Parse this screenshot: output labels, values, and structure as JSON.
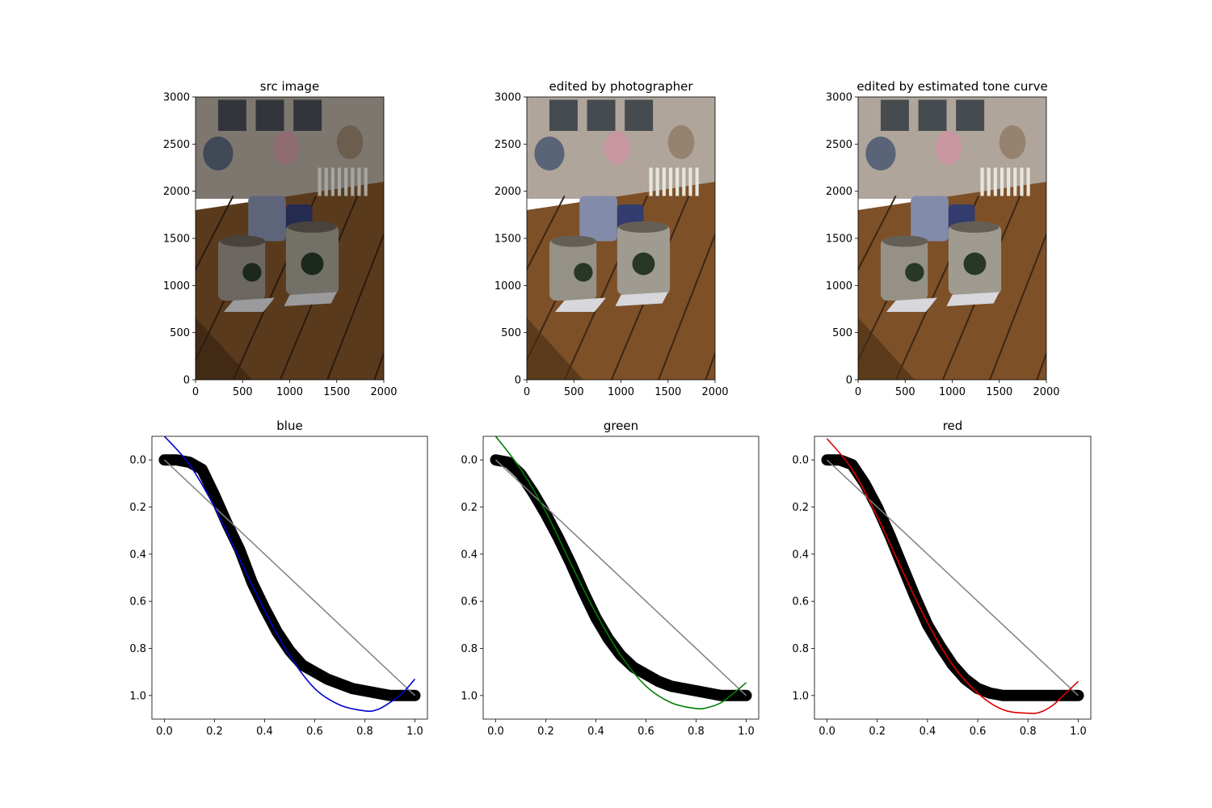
{
  "chart_data": [
    {
      "type": "image",
      "title": "src image",
      "xlim": [
        0,
        2000
      ],
      "ylim": [
        3000,
        0
      ],
      "xticks": [
        0,
        500,
        1000,
        1500,
        2000
      ],
      "yticks": [
        0,
        500,
        1000,
        1500,
        2000,
        2500,
        3000
      ],
      "brightness": 0.72
    },
    {
      "type": "image",
      "title": "edited by photographer",
      "xlim": [
        0,
        2000
      ],
      "ylim": [
        3000,
        0
      ],
      "xticks": [
        0,
        500,
        1000,
        1500,
        2000
      ],
      "yticks": [
        0,
        500,
        1000,
        1500,
        2000,
        2500,
        3000
      ],
      "brightness": 1.0
    },
    {
      "type": "image",
      "title": "edited by estimated tone curve",
      "xlim": [
        0,
        2000
      ],
      "ylim": [
        3000,
        0
      ],
      "xticks": [
        0,
        500,
        1000,
        1500,
        2000
      ],
      "yticks": [
        0,
        500,
        1000,
        1500,
        2000,
        2500,
        3000
      ],
      "brightness": 1.0
    },
    {
      "type": "scatter",
      "title": "blue",
      "xlim": [
        -0.05,
        1.05
      ],
      "ylim": [
        -0.1,
        1.1
      ],
      "xticks": [
        0.0,
        0.2,
        0.4,
        0.6,
        0.8,
        1.0
      ],
      "yticks": [
        0.0,
        0.2,
        0.4,
        0.6,
        0.8,
        1.0
      ],
      "scatter_color": "#000000",
      "fit_color": "#0000cc",
      "identity_color": "#808080",
      "points": [
        [
          0.0,
          0.0
        ],
        [
          0.05,
          0.0
        ],
        [
          0.1,
          0.01
        ],
        [
          0.15,
          0.04
        ],
        [
          0.2,
          0.15
        ],
        [
          0.25,
          0.27
        ],
        [
          0.3,
          0.38
        ],
        [
          0.35,
          0.52
        ],
        [
          0.4,
          0.63
        ],
        [
          0.45,
          0.73
        ],
        [
          0.5,
          0.81
        ],
        [
          0.55,
          0.87
        ],
        [
          0.6,
          0.9
        ],
        [
          0.65,
          0.93
        ],
        [
          0.7,
          0.95
        ],
        [
          0.75,
          0.97
        ],
        [
          0.8,
          0.98
        ],
        [
          0.85,
          0.99
        ],
        [
          0.9,
          1.0
        ],
        [
          0.95,
          1.0
        ],
        [
          1.0,
          1.0
        ]
      ],
      "fit": [
        [
          0.0,
          -0.1
        ],
        [
          0.1,
          0.02
        ],
        [
          0.2,
          0.2
        ],
        [
          0.3,
          0.42
        ],
        [
          0.4,
          0.64
        ],
        [
          0.5,
          0.83
        ],
        [
          0.6,
          0.97
        ],
        [
          0.7,
          1.04
        ],
        [
          0.8,
          1.065
        ],
        [
          0.85,
          1.06
        ],
        [
          0.9,
          1.03
        ],
        [
          0.95,
          0.99
        ],
        [
          1.0,
          0.93
        ]
      ]
    },
    {
      "type": "scatter",
      "title": "green",
      "xlim": [
        -0.05,
        1.05
      ],
      "ylim": [
        -0.1,
        1.1
      ],
      "xticks": [
        0.0,
        0.2,
        0.4,
        0.6,
        0.8,
        1.0
      ],
      "yticks": [
        0.0,
        0.2,
        0.4,
        0.6,
        0.8,
        1.0
      ],
      "scatter_color": "#000000",
      "fit_color": "#007f00",
      "identity_color": "#808080",
      "points": [
        [
          0.0,
          0.0
        ],
        [
          0.05,
          0.01
        ],
        [
          0.1,
          0.06
        ],
        [
          0.15,
          0.14
        ],
        [
          0.2,
          0.23
        ],
        [
          0.25,
          0.33
        ],
        [
          0.3,
          0.44
        ],
        [
          0.35,
          0.56
        ],
        [
          0.4,
          0.67
        ],
        [
          0.45,
          0.76
        ],
        [
          0.5,
          0.83
        ],
        [
          0.55,
          0.88
        ],
        [
          0.6,
          0.91
        ],
        [
          0.65,
          0.94
        ],
        [
          0.7,
          0.96
        ],
        [
          0.75,
          0.97
        ],
        [
          0.8,
          0.98
        ],
        [
          0.85,
          0.99
        ],
        [
          0.9,
          1.0
        ],
        [
          0.95,
          1.0
        ],
        [
          1.0,
          1.0
        ]
      ],
      "fit": [
        [
          0.0,
          -0.1
        ],
        [
          0.1,
          0.04
        ],
        [
          0.2,
          0.22
        ],
        [
          0.3,
          0.44
        ],
        [
          0.4,
          0.65
        ],
        [
          0.5,
          0.83
        ],
        [
          0.6,
          0.96
        ],
        [
          0.7,
          1.03
        ],
        [
          0.8,
          1.055
        ],
        [
          0.85,
          1.05
        ],
        [
          0.9,
          1.03
        ],
        [
          0.95,
          0.99
        ],
        [
          1.0,
          0.945
        ]
      ]
    },
    {
      "type": "scatter",
      "title": "red",
      "xlim": [
        -0.05,
        1.05
      ],
      "ylim": [
        -0.1,
        1.1
      ],
      "xticks": [
        0.0,
        0.2,
        0.4,
        0.6,
        0.8,
        1.0
      ],
      "yticks": [
        0.0,
        0.2,
        0.4,
        0.6,
        0.8,
        1.0
      ],
      "scatter_color": "#000000",
      "fit_color": "#dd0000",
      "identity_color": "#808080",
      "points": [
        [
          0.0,
          0.0
        ],
        [
          0.05,
          0.0
        ],
        [
          0.1,
          0.02
        ],
        [
          0.15,
          0.1
        ],
        [
          0.2,
          0.2
        ],
        [
          0.25,
          0.32
        ],
        [
          0.3,
          0.45
        ],
        [
          0.35,
          0.58
        ],
        [
          0.4,
          0.7
        ],
        [
          0.45,
          0.79
        ],
        [
          0.5,
          0.87
        ],
        [
          0.55,
          0.93
        ],
        [
          0.6,
          0.97
        ],
        [
          0.65,
          0.99
        ],
        [
          0.7,
          1.0
        ],
        [
          0.75,
          1.0
        ],
        [
          0.8,
          1.0
        ],
        [
          0.85,
          1.0
        ],
        [
          0.9,
          1.0
        ],
        [
          0.95,
          1.0
        ],
        [
          1.0,
          1.0
        ]
      ],
      "fit": [
        [
          0.0,
          -0.09
        ],
        [
          0.1,
          0.04
        ],
        [
          0.2,
          0.24
        ],
        [
          0.3,
          0.47
        ],
        [
          0.4,
          0.69
        ],
        [
          0.5,
          0.87
        ],
        [
          0.6,
          0.99
        ],
        [
          0.7,
          1.06
        ],
        [
          0.8,
          1.075
        ],
        [
          0.85,
          1.07
        ],
        [
          0.9,
          1.04
        ],
        [
          0.95,
          0.99
        ],
        [
          1.0,
          0.94
        ]
      ]
    }
  ]
}
